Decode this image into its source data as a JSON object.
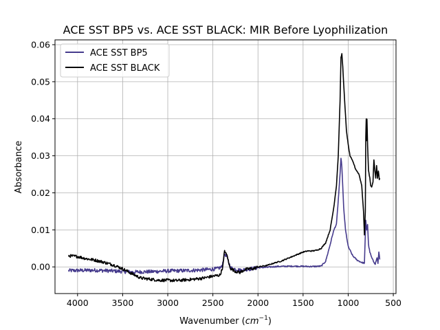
{
  "chart_data": {
    "type": "line",
    "title": "ACE SST BP5 vs. ACE SST BLACK: MIR Before Lyophilization",
    "xlabel_main": "Wavenumber (",
    "xlabel_unit": "cm",
    "xlabel_exp": "−1",
    "xlabel_close": ")",
    "ylabel": "Absorbance",
    "xlim": [
      4250,
      470
    ],
    "ylim": [
      -0.0072,
      0.0613
    ],
    "x_reversed": true,
    "grid": true,
    "legend_position": "top-left",
    "x_ticks": [
      4000,
      3500,
      3000,
      2500,
      2000,
      1500,
      1000,
      500
    ],
    "x_tick_labels": [
      "4000",
      "3500",
      "3000",
      "2500",
      "2000",
      "1500",
      "1000",
      "500"
    ],
    "y_ticks": [
      0.0,
      0.01,
      0.02,
      0.03,
      0.04,
      0.05,
      0.06
    ],
    "y_tick_labels": [
      "0.00",
      "0.01",
      "0.02",
      "0.03",
      "0.04",
      "0.05",
      "0.06"
    ],
    "series": [
      {
        "name": "ACE SST BP5",
        "color": "#453a8c",
        "noise": 0.0005,
        "points": [
          [
            4100,
            -0.001
          ],
          [
            3800,
            -0.0009
          ],
          [
            3600,
            -0.0011
          ],
          [
            3400,
            -0.0014
          ],
          [
            3200,
            -0.0013
          ],
          [
            3000,
            -0.0011
          ],
          [
            2800,
            -0.001
          ],
          [
            2600,
            -0.0008
          ],
          [
            2450,
            -0.0005
          ],
          [
            2400,
            0.0
          ],
          [
            2370,
            0.0035
          ],
          [
            2350,
            0.003
          ],
          [
            2330,
            0.0015
          ],
          [
            2300,
            -0.0003
          ],
          [
            2200,
            -0.0009
          ],
          [
            2100,
            -0.0006
          ],
          [
            2000,
            -0.0002
          ],
          [
            1900,
            -0.0001
          ],
          [
            1800,
            0.0001
          ],
          [
            1600,
            0.0002
          ],
          [
            1400,
            0.0001
          ],
          [
            1300,
            0.0002
          ],
          [
            1250,
            0.0015
          ],
          [
            1200,
            0.006
          ],
          [
            1170,
            0.009
          ],
          [
            1150,
            0.0105
          ],
          [
            1130,
            0.0115
          ],
          [
            1110,
            0.018
          ],
          [
            1090,
            0.025
          ],
          [
            1080,
            0.0295
          ],
          [
            1070,
            0.027
          ],
          [
            1050,
            0.016
          ],
          [
            1030,
            0.01
          ],
          [
            1000,
            0.0055
          ],
          [
            950,
            0.003
          ],
          [
            900,
            0.0018
          ],
          [
            850,
            0.0012
          ],
          [
            820,
            0.001
          ],
          [
            805,
            0.0125
          ],
          [
            795,
            0.01
          ],
          [
            785,
            0.0115
          ],
          [
            775,
            0.006
          ],
          [
            760,
            0.004
          ],
          [
            740,
            0.0025
          ],
          [
            720,
            0.0015
          ],
          [
            700,
            0.0008
          ],
          [
            680,
            0.0025
          ],
          [
            670,
            0.001
          ],
          [
            660,
            0.004
          ],
          [
            650,
            0.002
          ]
        ]
      },
      {
        "name": "ACE SST BLACK",
        "color": "#000000",
        "noise": 0.0004,
        "points": [
          [
            4100,
            0.003
          ],
          [
            4000,
            0.0028
          ],
          [
            3900,
            0.0022
          ],
          [
            3800,
            0.0018
          ],
          [
            3700,
            0.0012
          ],
          [
            3600,
            0.0005
          ],
          [
            3500,
            -0.0005
          ],
          [
            3400,
            -0.0018
          ],
          [
            3300,
            -0.003
          ],
          [
            3200,
            -0.0033
          ],
          [
            3100,
            -0.0036
          ],
          [
            3000,
            -0.0036
          ],
          [
            2900,
            -0.0037
          ],
          [
            2800,
            -0.0035
          ],
          [
            2700,
            -0.0033
          ],
          [
            2600,
            -0.003
          ],
          [
            2500,
            -0.0025
          ],
          [
            2420,
            -0.0022
          ],
          [
            2390,
            0.0
          ],
          [
            2370,
            0.0045
          ],
          [
            2355,
            0.0035
          ],
          [
            2340,
            0.003
          ],
          [
            2320,
            0.0005
          ],
          [
            2300,
            -0.0005
          ],
          [
            2250,
            -0.0012
          ],
          [
            2200,
            -0.0015
          ],
          [
            2150,
            -0.0008
          ],
          [
            2100,
            -0.0005
          ],
          [
            2050,
            -0.0005
          ],
          [
            2000,
            0.0
          ],
          [
            1950,
            0.0002
          ],
          [
            1900,
            0.0004
          ],
          [
            1850,
            0.0008
          ],
          [
            1800,
            0.0012
          ],
          [
            1750,
            0.0015
          ],
          [
            1700,
            0.002
          ],
          [
            1650,
            0.0025
          ],
          [
            1600,
            0.003
          ],
          [
            1550,
            0.0035
          ],
          [
            1500,
            0.004
          ],
          [
            1450,
            0.0043
          ],
          [
            1400,
            0.0043
          ],
          [
            1350,
            0.0045
          ],
          [
            1300,
            0.005
          ],
          [
            1250,
            0.0065
          ],
          [
            1200,
            0.01
          ],
          [
            1160,
            0.016
          ],
          [
            1130,
            0.022
          ],
          [
            1110,
            0.03
          ],
          [
            1090,
            0.045
          ],
          [
            1080,
            0.0565
          ],
          [
            1070,
            0.0575
          ],
          [
            1060,
            0.054
          ],
          [
            1040,
            0.045
          ],
          [
            1020,
            0.037
          ],
          [
            1000,
            0.033
          ],
          [
            980,
            0.03
          ],
          [
            960,
            0.029
          ],
          [
            940,
            0.028
          ],
          [
            920,
            0.0265
          ],
          [
            880,
            0.025
          ],
          [
            850,
            0.022
          ],
          [
            830,
            0.015
          ],
          [
            820,
            0.0085
          ],
          [
            810,
            0.015
          ],
          [
            805,
            0.035
          ],
          [
            800,
            0.04
          ],
          [
            797,
            0.034
          ],
          [
            792,
            0.04
          ],
          [
            785,
            0.033
          ],
          [
            775,
            0.026
          ],
          [
            760,
            0.024
          ],
          [
            750,
            0.022
          ],
          [
            740,
            0.0215
          ],
          [
            725,
            0.023
          ],
          [
            715,
            0.029
          ],
          [
            705,
            0.026
          ],
          [
            695,
            0.024
          ],
          [
            685,
            0.0275
          ],
          [
            675,
            0.024
          ],
          [
            665,
            0.026
          ],
          [
            655,
            0.0235
          ],
          [
            650,
            0.024
          ]
        ]
      }
    ]
  }
}
